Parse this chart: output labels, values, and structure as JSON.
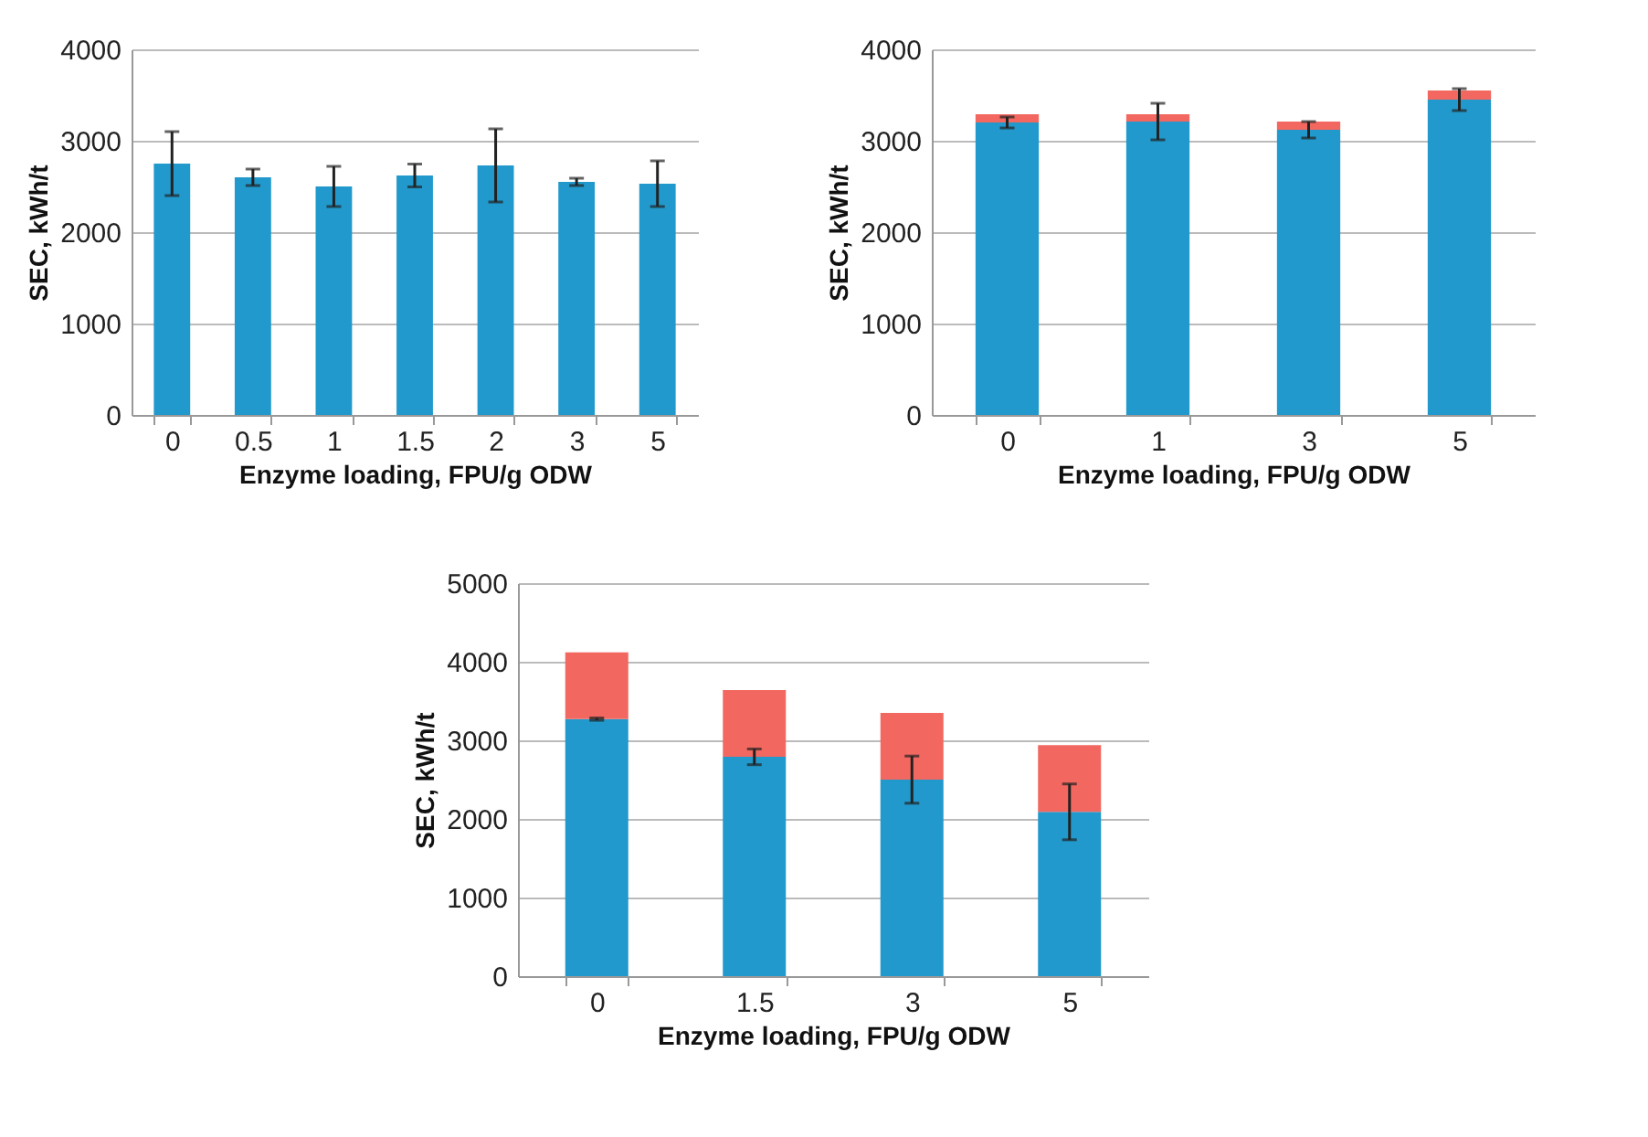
{
  "chart_data": [
    {
      "type": "bar",
      "xlabel": "Enzyme loading, FPU/g ODW",
      "ylabel": "SEC, kWh/t",
      "categories": [
        "0",
        "0.5",
        "1",
        "1.5",
        "2",
        "3",
        "5"
      ],
      "series": [
        {
          "color": "#2199cc",
          "values": [
            2750,
            2600,
            2500,
            2620,
            2730,
            2550,
            2530
          ],
          "errors": [
            350,
            90,
            220,
            125,
            400,
            40,
            250
          ]
        }
      ],
      "ylim": [
        0,
        4000
      ],
      "yticks": [
        0,
        1000,
        2000,
        3000,
        4000
      ],
      "grid": "y"
    },
    {
      "type": "bar",
      "stacked": true,
      "xlabel": "Enzyme loading, FPU/g ODW",
      "ylabel": "SEC, kWh/t",
      "categories": [
        "0",
        "1",
        "3",
        "5"
      ],
      "series": [
        {
          "color": "#2199cc",
          "values": [
            3200,
            3210,
            3120,
            3450
          ],
          "errors": [
            60,
            200,
            90,
            120
          ]
        },
        {
          "color": "#f26860",
          "values": [
            90,
            80,
            90,
            100
          ]
        }
      ],
      "ylim": [
        0,
        4000
      ],
      "yticks": [
        0,
        1000,
        2000,
        3000,
        4000
      ],
      "grid": "y"
    },
    {
      "type": "bar",
      "stacked": true,
      "xlabel": "Enzyme loading, FPU/g ODW",
      "ylabel": "SEC, kWh/t",
      "categories": [
        "0",
        "1.5",
        "3",
        "5"
      ],
      "series": [
        {
          "color": "#2199cc",
          "values": [
            3270,
            2790,
            2500,
            2090
          ],
          "errors": [
            15,
            100,
            300,
            355
          ]
        },
        {
          "color": "#f26860",
          "values": [
            850,
            850,
            850,
            850
          ]
        }
      ],
      "ylim": [
        0,
        5000
      ],
      "yticks": [
        0,
        1000,
        2000,
        3000,
        4000,
        5000
      ],
      "grid": "y"
    }
  ]
}
